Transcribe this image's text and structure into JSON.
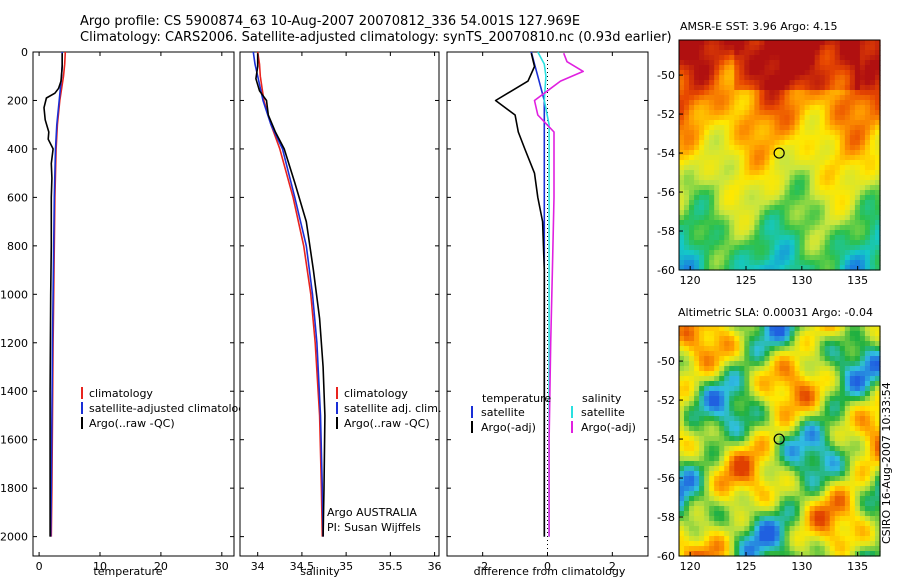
{
  "header": {
    "line1": "Argo profile: CS 5900874_63 10-Aug-2007 20070812_336 54.001S 127.969E",
    "line2": "Climatology: CARS2006. Satellite-adjusted climatology: synTS_20070810.nc (0.93d earlier)"
  },
  "colors": {
    "climatology": "#e8231e",
    "satellite": "#1a2fd6",
    "argo": "#000000",
    "sat_salinity": "#29e0e0",
    "argo_salinity": "#e020e0"
  },
  "chart_data": [
    {
      "type": "line",
      "xlabel": "temperature",
      "xlim": [
        -1,
        32
      ],
      "ylim": [
        2080,
        0
      ],
      "xticks": [
        "0",
        "10",
        "20",
        "30"
      ],
      "yticks": [
        "0",
        "200",
        "400",
        "600",
        "800",
        "1000",
        "1200",
        "1400",
        "1600",
        "1800",
        "2000"
      ],
      "legend": [
        "climatology",
        "satellite-adjusted climatology",
        "Argo(..raw -QC)"
      ],
      "series": [
        {
          "name": "climatology",
          "color_key": "climatology",
          "x": [
            4.3,
            4.2,
            4.0,
            3.4,
            3.0,
            2.8,
            2.6,
            2.5,
            2.4,
            2.3,
            2.2,
            2.1,
            2.0
          ],
          "y": [
            0,
            50,
            100,
            200,
            300,
            400,
            600,
            800,
            1000,
            1200,
            1500,
            1800,
            2000
          ]
        },
        {
          "name": "satellite-adjusted climatology",
          "color_key": "satellite",
          "x": [
            3.8,
            3.8,
            3.7,
            3.3,
            2.9,
            2.7,
            2.5,
            2.4,
            2.3,
            2.2,
            2.1,
            2.0,
            1.9
          ],
          "y": [
            0,
            50,
            100,
            200,
            300,
            400,
            600,
            800,
            1000,
            1200,
            1500,
            1800,
            2000
          ]
        },
        {
          "name": "Argo(..raw -QC)",
          "color_key": "argo",
          "x": [
            3.8,
            3.8,
            3.6,
            3.2,
            2.6,
            1.2,
            0.8,
            1.0,
            1.6,
            1.5,
            2.3,
            2.0,
            2.1,
            2.0,
            2.0,
            1.9,
            1.8,
            1.8,
            1.8
          ],
          "y": [
            5,
            60,
            120,
            150,
            170,
            190,
            230,
            280,
            330,
            360,
            400,
            460,
            520,
            600,
            800,
            1000,
            1400,
            1800,
            2000
          ]
        }
      ]
    },
    {
      "type": "line",
      "xlabel": "salinity",
      "xlim": [
        33.8,
        36.05
      ],
      "ylim": [
        2080,
        0
      ],
      "xticks": [
        "34",
        "34.5",
        "35",
        "35.5",
        "36"
      ],
      "legend": [
        "climatology",
        "satellite adj. clim.",
        "Argo(..raw -QC)"
      ],
      "annotations": [
        "Argo AUSTRALIA",
        "PI: Susan Wijffels"
      ],
      "series": [
        {
          "name": "climatology",
          "color_key": "climatology",
          "x": [
            34.0,
            34.02,
            34.03,
            34.07,
            34.15,
            34.25,
            34.4,
            34.52,
            34.6,
            34.65,
            34.7,
            34.72,
            34.73
          ],
          "y": [
            0,
            50,
            100,
            200,
            300,
            400,
            600,
            800,
            1000,
            1200,
            1500,
            1800,
            2000
          ]
        },
        {
          "name": "satellite adj. clim.",
          "color_key": "satellite",
          "x": [
            33.95,
            33.97,
            34.0,
            34.06,
            34.15,
            34.28,
            34.42,
            34.55,
            34.62,
            34.67,
            34.71,
            34.73,
            34.74
          ],
          "y": [
            0,
            50,
            100,
            200,
            300,
            400,
            600,
            800,
            1000,
            1200,
            1500,
            1800,
            2000
          ]
        },
        {
          "name": "Argo(..raw -QC)",
          "color_key": "argo",
          "x": [
            34.0,
            34.0,
            33.98,
            34.02,
            34.1,
            34.12,
            34.2,
            34.3,
            34.42,
            34.55,
            34.63,
            34.7,
            34.74,
            34.76,
            34.75,
            34.74
          ],
          "y": [
            5,
            60,
            110,
            160,
            200,
            260,
            330,
            400,
            540,
            700,
            900,
            1100,
            1300,
            1500,
            1800,
            2000
          ]
        }
      ]
    },
    {
      "type": "line",
      "xlabel": "difference from climatology",
      "xlim": [
        -3.1,
        3.1
      ],
      "ylim": [
        2080,
        0
      ],
      "xticks": [
        "-2",
        "0",
        "2"
      ],
      "legend_groups": [
        {
          "heading": "temperature",
          "entries": [
            "satellite",
            "Argo(-adj)"
          ]
        },
        {
          "heading": "salinity",
          "entries": [
            "satellite",
            "Argo(-adj)"
          ]
        }
      ],
      "series": [
        {
          "name": "satellite",
          "group": "temperature",
          "color_key": "satellite",
          "x": [
            -0.5,
            -0.4,
            -0.3,
            -0.1,
            -0.1,
            -0.1,
            -0.1,
            -0.1,
            -0.1,
            -0.1,
            -0.1,
            -0.1,
            -0.1
          ],
          "y": [
            0,
            50,
            100,
            200,
            300,
            400,
            600,
            800,
            1000,
            1200,
            1500,
            1800,
            2000
          ]
        },
        {
          "name": "Argo(-adj)",
          "group": "temperature",
          "color_key": "argo",
          "x": [
            -0.5,
            -0.4,
            -0.6,
            -1.1,
            -1.6,
            -1.0,
            -0.9,
            -0.7,
            -0.4,
            -0.3,
            -0.15,
            -0.1,
            -0.1,
            -0.1,
            -0.1
          ],
          "y": [
            5,
            60,
            120,
            160,
            200,
            260,
            330,
            400,
            500,
            600,
            700,
            900,
            1200,
            1600,
            2000
          ]
        },
        {
          "name": "satellite",
          "group": "salinity",
          "color_key": "sat_salinity",
          "x": [
            -0.3,
            -0.1,
            -0.05,
            -0.1,
            0.05,
            0.05,
            0.05,
            0.05,
            0.05,
            0.05,
            0.05,
            0.05,
            0.05
          ],
          "y": [
            0,
            50,
            100,
            200,
            300,
            400,
            600,
            800,
            1000,
            1200,
            1500,
            1800,
            2000
          ]
        },
        {
          "name": "Argo(-adj)",
          "group": "salinity",
          "color_key": "argo_salinity",
          "x": [
            0.5,
            0.6,
            1.1,
            0.4,
            0.0,
            -0.4,
            -0.3,
            0.2,
            0.2,
            0.2,
            0.15,
            0.1,
            0.05,
            0.05
          ],
          "y": [
            5,
            40,
            80,
            120,
            160,
            200,
            260,
            330,
            400,
            600,
            900,
            1200,
            1600,
            2000
          ]
        }
      ]
    },
    {
      "type": "heatmap",
      "title": "AMSR-E SST: 3.96 Argo: 4.15",
      "xlim": [
        119,
        137
      ],
      "ylim": [
        -60,
        -48.2
      ],
      "xticks": [
        "120",
        "125",
        "130",
        "135"
      ],
      "yticks": [
        "-50",
        "-52",
        "-54",
        "-56",
        "-58",
        "-60"
      ],
      "marker": {
        "x": 127.969,
        "y": -54.001
      },
      "colorscale": [
        "#1a7fe0",
        "#14c8c8",
        "#2ec04a",
        "#c8e640",
        "#ffe800",
        "#ff9a00",
        "#e84800",
        "#b01010"
      ]
    },
    {
      "type": "heatmap",
      "title": "Altimetric SLA: 0.00031 Argo: -0.04",
      "xlim": [
        119,
        137
      ],
      "ylim": [
        -60,
        -48.2
      ],
      "xticks": [
        "120",
        "125",
        "130",
        "135"
      ],
      "yticks": [
        "-50",
        "-52",
        "-54",
        "-56",
        "-58",
        "-60"
      ],
      "marker": {
        "x": 127.969,
        "y": -54.001
      },
      "colorscale": [
        "#2060e0",
        "#30c0e0",
        "#20b040",
        "#b8e040",
        "#ffe800",
        "#ff9a00",
        "#e04000"
      ]
    }
  ],
  "footer_stamp": "CSIRO 16-Aug-2007 10:33:54"
}
